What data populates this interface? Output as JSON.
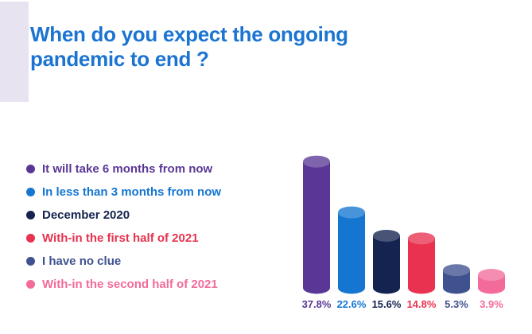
{
  "title_line1": "When do you expect the ongoing",
  "title_line2": "pandemic to end ?",
  "chart_data": {
    "type": "bar",
    "style": "3d-cylinder",
    "title": "When do you expect the ongoing pandemic to end ?",
    "categories": [
      "It will take 6 months from now",
      "In less than 3 months from now",
      "December 2020",
      "With-in the first half of 2021",
      "I have no clue",
      "With-in the second half of 2021"
    ],
    "values": [
      37.8,
      22.6,
      15.6,
      14.8,
      5.3,
      3.9
    ],
    "value_labels": [
      "37.8%",
      "22.6%",
      "15.6%",
      "14.8%",
      "5.3%",
      "3.9%"
    ],
    "colors": [
      "#5a3796",
      "#1576d1",
      "#14234f",
      "#e8324f",
      "#3f528f",
      "#f26b9b"
    ],
    "unit": "%",
    "ylim": [
      0,
      40
    ],
    "grid": false,
    "legend_position": "left"
  }
}
